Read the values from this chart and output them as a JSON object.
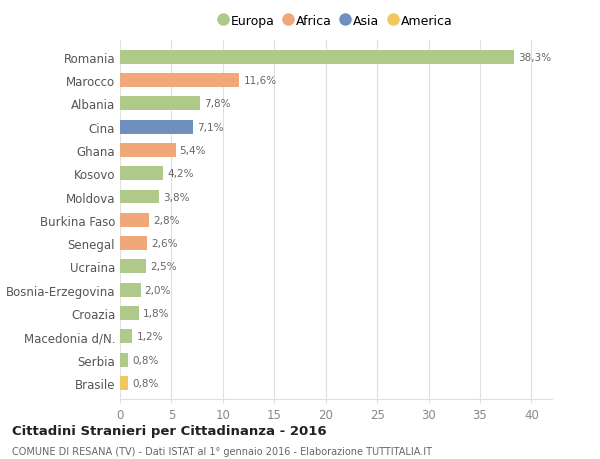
{
  "categories": [
    "Romania",
    "Marocco",
    "Albania",
    "Cina",
    "Ghana",
    "Kosovo",
    "Moldova",
    "Burkina Faso",
    "Senegal",
    "Ucraina",
    "Bosnia-Erzegovina",
    "Croazia",
    "Macedonia d/N.",
    "Serbia",
    "Brasile"
  ],
  "values": [
    38.3,
    11.6,
    7.8,
    7.1,
    5.4,
    4.2,
    3.8,
    2.8,
    2.6,
    2.5,
    2.0,
    1.8,
    1.2,
    0.8,
    0.8
  ],
  "labels": [
    "38,3%",
    "11,6%",
    "7,8%",
    "7,1%",
    "5,4%",
    "4,2%",
    "3,8%",
    "2,8%",
    "2,6%",
    "2,5%",
    "2,0%",
    "1,8%",
    "1,2%",
    "0,8%",
    "0,8%"
  ],
  "colors": [
    "#aec98a",
    "#f0a878",
    "#aec98a",
    "#6f8fbf",
    "#f0a878",
    "#aec98a",
    "#aec98a",
    "#f0a878",
    "#f0a878",
    "#aec98a",
    "#aec98a",
    "#aec98a",
    "#aec98a",
    "#aec98a",
    "#f0c860"
  ],
  "legend_labels": [
    "Europa",
    "Africa",
    "Asia",
    "America"
  ],
  "legend_colors": [
    "#aec98a",
    "#f0a878",
    "#6f8fbf",
    "#f0c860"
  ],
  "title": "Cittadini Stranieri per Cittadinanza - 2016",
  "subtitle": "COMUNE DI RESANA (TV) - Dati ISTAT al 1° gennaio 2016 - Elaborazione TUTTITALIA.IT",
  "xlim": [
    0,
    42
  ],
  "xticks": [
    0,
    5,
    10,
    15,
    20,
    25,
    30,
    35,
    40
  ],
  "background_color": "#ffffff",
  "grid_color": "#e0e0e0",
  "bar_height": 0.6
}
